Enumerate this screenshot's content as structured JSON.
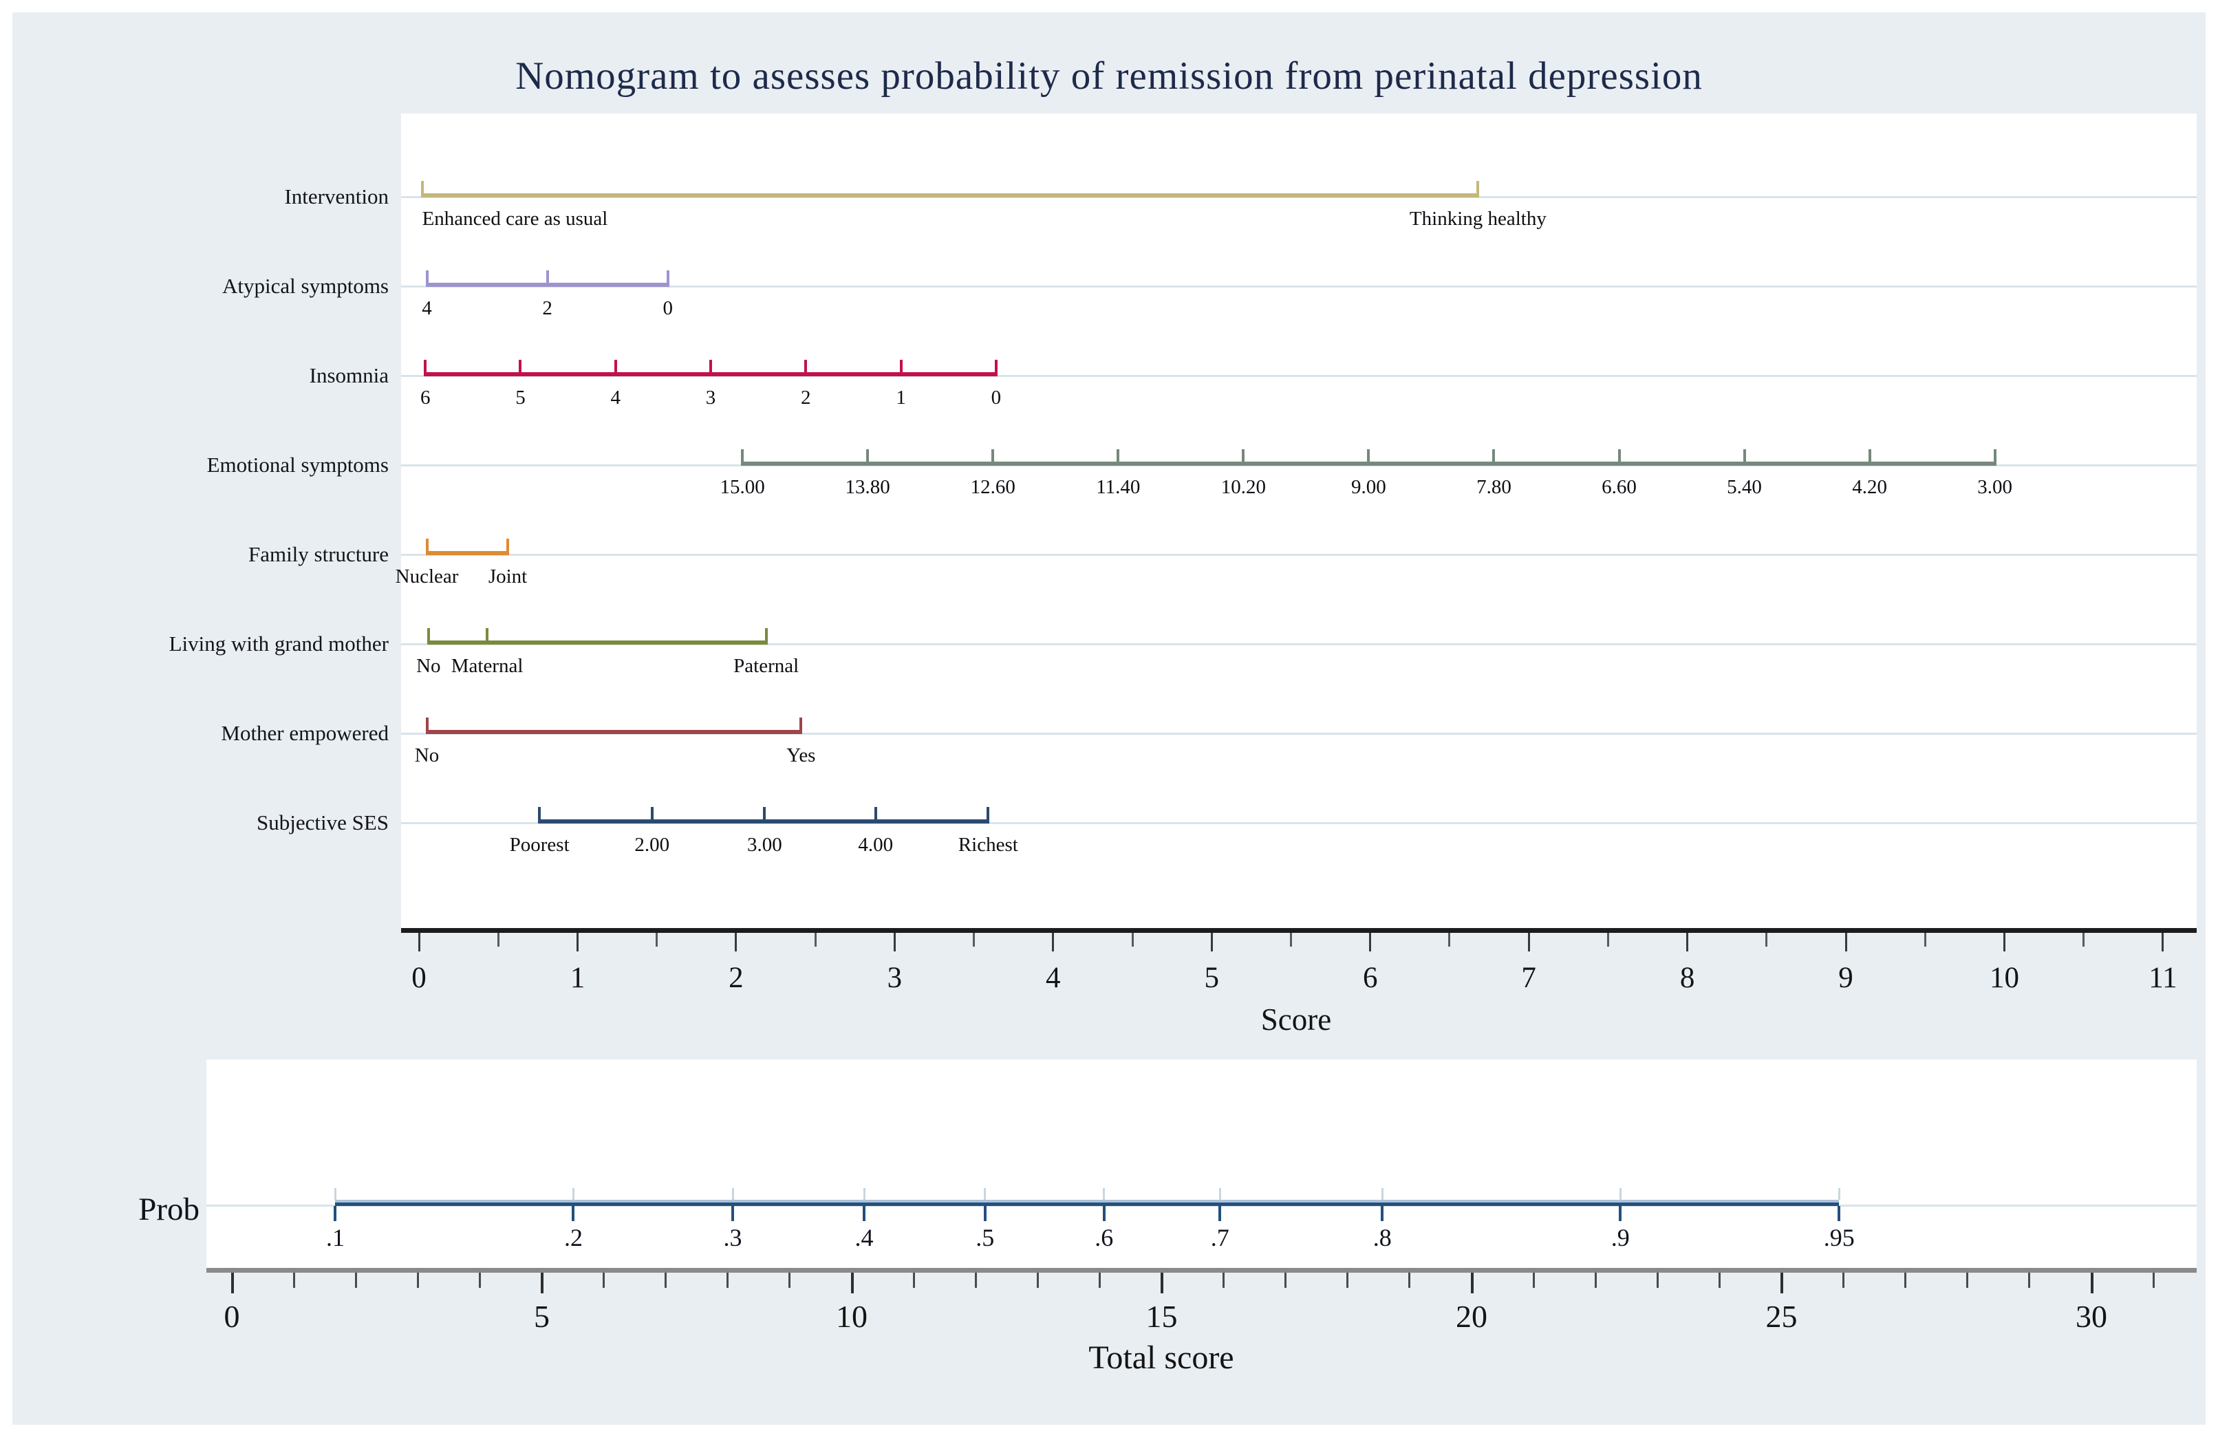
{
  "chart_data": {
    "type": "line",
    "subtype": "nomogram",
    "title": "Nomogram to asesses probability of remission from perinatal depression",
    "background_color": "#e8eef2",
    "score_axis": {
      "label": "Score",
      "min": 0,
      "max": 11,
      "major_step": 1,
      "minor_step": 0.5,
      "tick_labels": [
        "0",
        "1",
        "2",
        "3",
        "4",
        "5",
        "6",
        "7",
        "8",
        "9",
        "10",
        "11"
      ]
    },
    "rows": [
      {
        "label": "Intervention",
        "color": "#c2b87b",
        "ticks": [
          {
            "label": "Enhanced care as usual",
            "score": 0.02,
            "anchor": "start"
          },
          {
            "label": "Thinking healthy",
            "score": 6.68
          }
        ]
      },
      {
        "label": "Atypical symptoms",
        "color": "#9d94cf",
        "ticks": [
          {
            "label": "4",
            "score": 0.05
          },
          {
            "label": "2",
            "score": 0.81
          },
          {
            "label": "0",
            "score": 1.57
          }
        ]
      },
      {
        "label": "Insomnia",
        "color": "#c2124b",
        "ticks": [
          {
            "label": "6",
            "score": 0.04
          },
          {
            "label": "5",
            "score": 0.64
          },
          {
            "label": "4",
            "score": 1.24
          },
          {
            "label": "3",
            "score": 1.84
          },
          {
            "label": "2",
            "score": 2.44
          },
          {
            "label": "1",
            "score": 3.04
          },
          {
            "label": "0",
            "score": 3.64
          }
        ]
      },
      {
        "label": "Emotional symptoms",
        "color": "#75897c",
        "ticks": [
          {
            "label": "15.00",
            "score": 2.04
          },
          {
            "label": "13.80",
            "score": 2.83
          },
          {
            "label": "12.60",
            "score": 3.62
          },
          {
            "label": "11.40",
            "score": 4.41
          },
          {
            "label": "10.20",
            "score": 5.2
          },
          {
            "label": "9.00",
            "score": 5.99
          },
          {
            "label": "7.80",
            "score": 6.78
          },
          {
            "label": "6.60",
            "score": 7.57
          },
          {
            "label": "5.40",
            "score": 8.36
          },
          {
            "label": "4.20",
            "score": 9.15
          },
          {
            "label": "3.00",
            "score": 9.94
          }
        ]
      },
      {
        "label": "Family structure",
        "color": "#dd8b34",
        "ticks": [
          {
            "label": "Nuclear",
            "score": 0.05
          },
          {
            "label": "Joint",
            "score": 0.56
          }
        ]
      },
      {
        "label": "Living with grand mother",
        "color": "#7a8b3e",
        "ticks": [
          {
            "label": "No",
            "score": 0.06
          },
          {
            "label": "Maternal",
            "score": 0.43
          },
          {
            "label": "Paternal",
            "score": 2.19
          }
        ]
      },
      {
        "label": "Mother empowered",
        "color": "#a04448",
        "ticks": [
          {
            "label": "No",
            "score": 0.05
          },
          {
            "label": "Yes",
            "score": 2.41
          }
        ]
      },
      {
        "label": "Subjective SES",
        "color": "#2a4a70",
        "ticks": [
          {
            "label": "Poorest",
            "score": 0.76
          },
          {
            "label": "2.00",
            "score": 1.47
          },
          {
            "label": "3.00",
            "score": 2.18
          },
          {
            "label": "4.00",
            "score": 2.88
          },
          {
            "label": "Richest",
            "score": 3.59
          }
        ]
      }
    ],
    "prob_axis": {
      "label": "Prob",
      "color": "#24507c",
      "ticks": [
        {
          "label": ".1",
          "total_score": 1.67
        },
        {
          "label": ".2",
          "total_score": 5.51
        },
        {
          "label": ".3",
          "total_score": 8.08
        },
        {
          "label": ".4",
          "total_score": 10.2
        },
        {
          "label": ".5",
          "total_score": 12.15
        },
        {
          "label": ".6",
          "total_score": 14.07
        },
        {
          "label": ".7",
          "total_score": 15.94
        },
        {
          "label": ".8",
          "total_score": 18.56
        },
        {
          "label": ".9",
          "total_score": 22.4
        },
        {
          "label": ".95",
          "total_score": 25.93
        }
      ]
    },
    "total_axis": {
      "label": "Total score",
      "min": 0,
      "max": 30,
      "major_step": 5,
      "minor_step": 1,
      "minor_max": 31,
      "tick_labels": [
        "0",
        "5",
        "10",
        "15",
        "20",
        "25",
        "30"
      ]
    }
  }
}
